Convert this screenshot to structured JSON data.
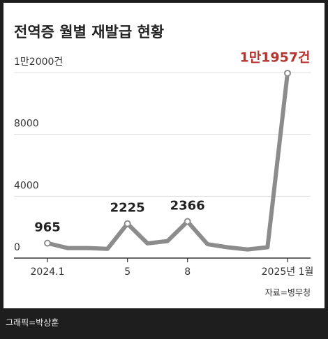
{
  "chart_data": {
    "type": "line",
    "title": "전역증 월별 재발급 현황",
    "categories": [
      "2024.1",
      null,
      null,
      null,
      "5",
      null,
      null,
      "8",
      null,
      null,
      null,
      null,
      "2025년 1월"
    ],
    "values": [
      965,
      650,
      650,
      600,
      2225,
      950,
      1100,
      2366,
      900,
      700,
      560,
      700,
      11957
    ],
    "value_labels": [
      "965",
      null,
      null,
      null,
      "2225",
      null,
      null,
      "2366",
      null,
      null,
      null,
      null,
      "1만1957건"
    ],
    "color": "#8c8c8c",
    "highlight_color": "#b5342f",
    "ylim": [
      0,
      12000
    ],
    "yticks": [
      0,
      4000,
      8000,
      {
        "value": 12000,
        "label": "1만2000건"
      }
    ],
    "grid": true,
    "source": "자료=병무청",
    "credit": "그래픽=박상훈"
  }
}
